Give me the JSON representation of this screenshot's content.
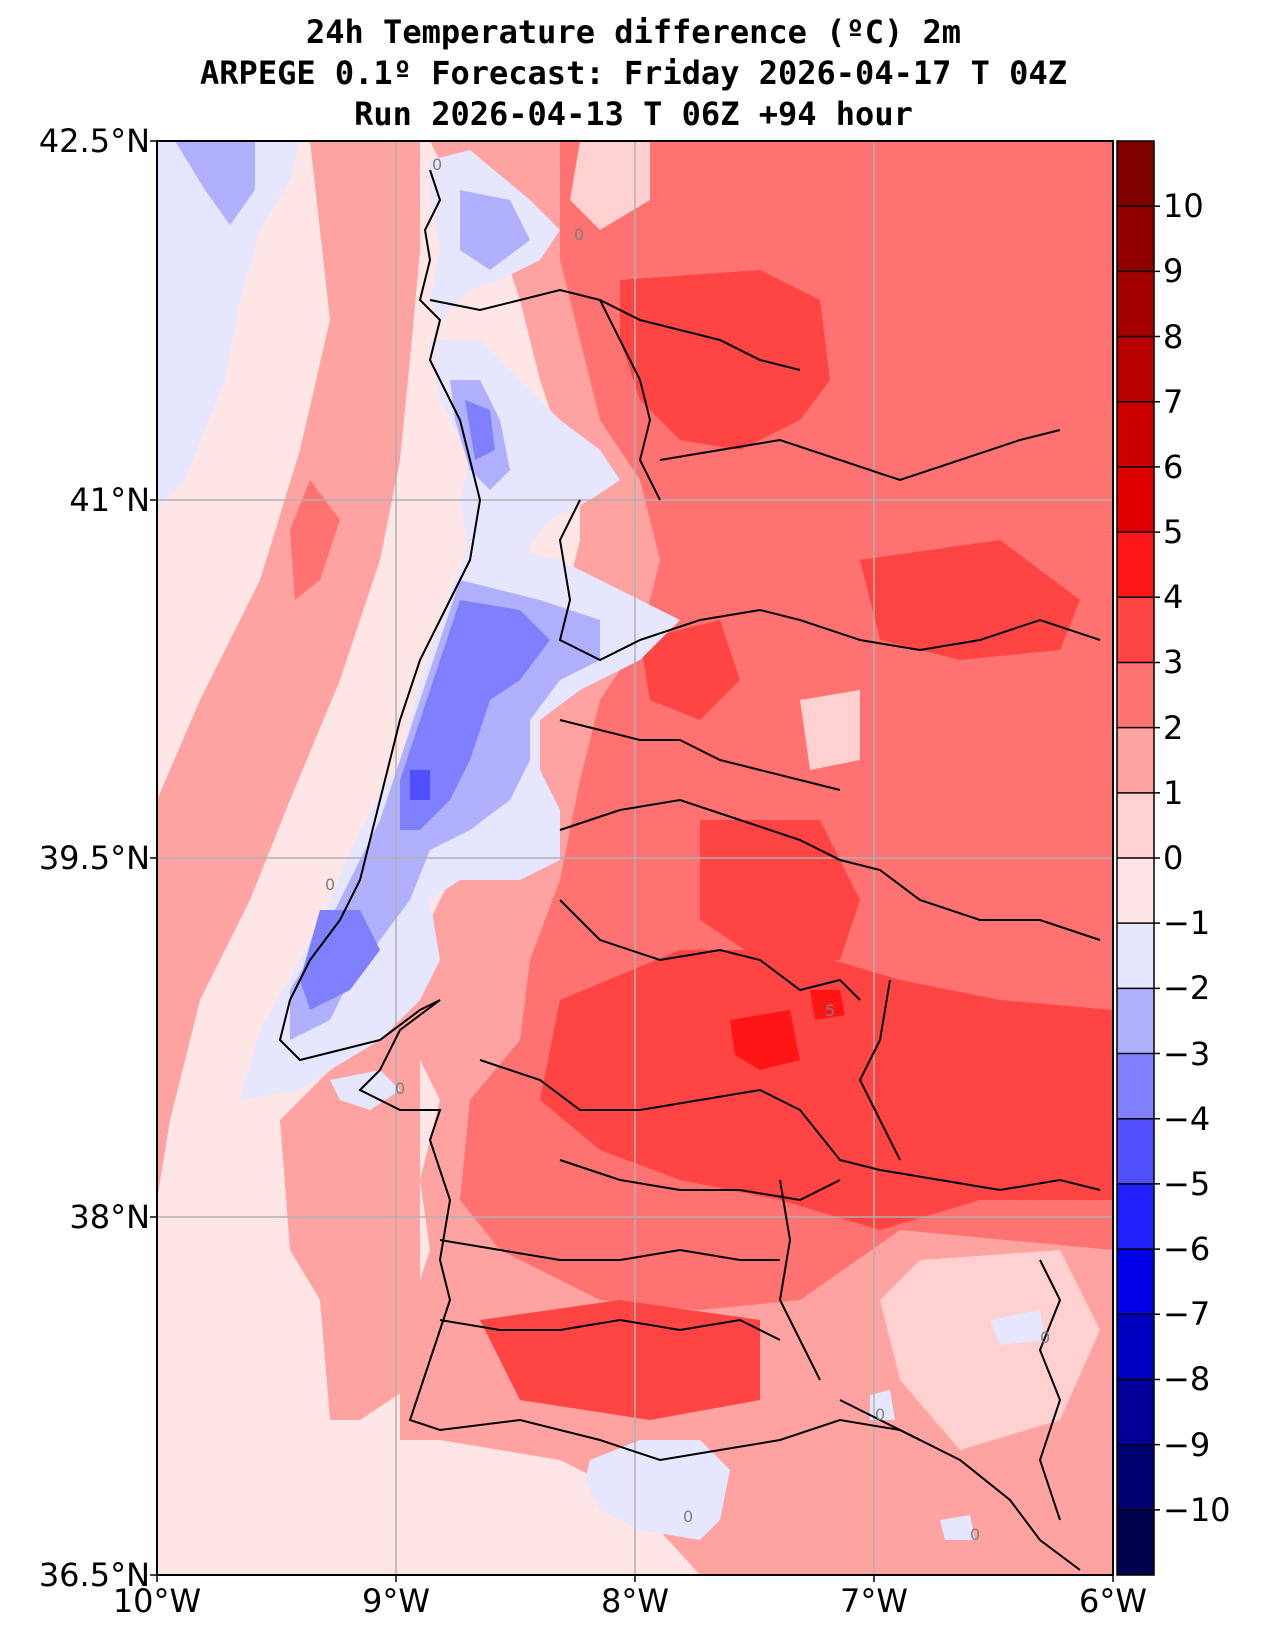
{
  "title": {
    "line1": "24h Temperature difference (ºC) 2m",
    "line2": "ARPEGE 0.1º Forecast: Friday 2026-04-17 T 04Z",
    "line3": "Run 2026-04-13 T 06Z +94 hour"
  },
  "map": {
    "lat_ticks": [
      "42.5°N",
      "41°N",
      "39.5°N",
      "38°N",
      "36.5°N"
    ],
    "lon_ticks": [
      "10°W",
      "9°W",
      "8°W",
      "7°W",
      "6°W"
    ],
    "lat_range": [
      36.5,
      42.5
    ],
    "lon_range": [
      -10,
      -6
    ],
    "grid": true,
    "contour_labels": [
      "0",
      "0",
      "0",
      "0",
      "0",
      "0",
      "5",
      "0",
      "0"
    ]
  },
  "colorbar": {
    "ticks": [
      "10",
      "9",
      "8",
      "7",
      "6",
      "5",
      "4",
      "3",
      "2",
      "1",
      "0",
      "−1",
      "−2",
      "−3",
      "−4",
      "−5",
      "−6",
      "−7",
      "−8",
      "−9",
      "−10"
    ],
    "range": [
      -11,
      11
    ],
    "colors_top_to_bottom": [
      "#800000",
      "#930000",
      "#a60000",
      "#ba0000",
      "#cd0000",
      "#e10000",
      "#fe1515",
      "#ff4444",
      "#ff7272",
      "#ffa2a2",
      "#ffd0d0",
      "#ffe6e6",
      "#e6e6ff",
      "#b0b0ff",
      "#8080ff",
      "#5050ff",
      "#2020ff",
      "#0000e8",
      "#0000c0",
      "#000098",
      "#000070",
      "#00004c"
    ],
    "placement": "right"
  },
  "colors": {
    "land_warm": "#ff7272",
    "land_hot": "#ff4444",
    "sea_neutral": "#ffe6e6",
    "sea_warm": "#ffa2a2",
    "coast_cool": "#b0b0ff",
    "coast_cold": "#8080ff"
  }
}
